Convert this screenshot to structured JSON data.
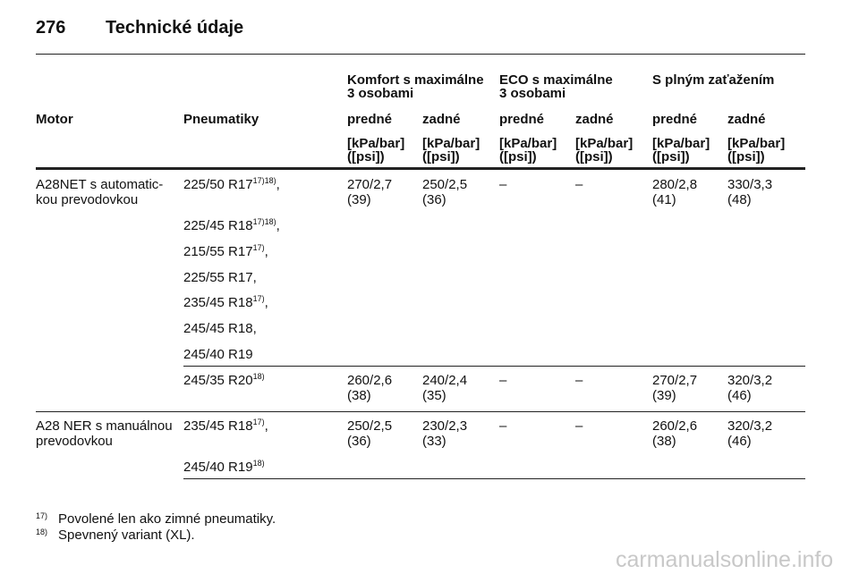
{
  "header": {
    "page": "276",
    "title": "Technické údaje"
  },
  "table": {
    "group_headers": [
      [
        "Komfort s maximálne",
        "3 osobami"
      ],
      [
        "ECO s maximálne",
        "3 osobami"
      ],
      [
        "S plným zaťažením"
      ]
    ],
    "col_headers": [
      "Motor",
      "Pneumatiky",
      "predné",
      "zadné",
      "predné",
      "zadné",
      "predné",
      "zadné"
    ],
    "units": [
      [
        "[kPa/bar]",
        "([psi])"
      ],
      [
        "[kPa/bar]",
        "([psi])"
      ],
      [
        "[kPa/bar]",
        "([psi])"
      ],
      [
        "[kPa/bar]",
        "([psi])"
      ],
      [
        "[kPa/bar]",
        "([psi])"
      ],
      [
        "[kPa/bar]",
        "([psi])"
      ]
    ],
    "groups": [
      {
        "motor": [
          "A28NET s automatic-",
          "kou prevodovkou"
        ],
        "rows": [
          {
            "tires": [
              {
                "text": "225/50 R17",
                "sup": "17)18)",
                "suffix": ","
              },
              {
                "text": "225/45 R18",
                "sup": "17)18)",
                "suffix": ","
              },
              {
                "text": "215/55 R17",
                "sup": "17)",
                "suffix": ","
              },
              {
                "text": "225/55 R17,"
              },
              {
                "text": "235/45 R18",
                "sup": "17)",
                "suffix": ","
              },
              {
                "text": "245/45 R18,"
              },
              {
                "text": "245/40 R19"
              }
            ],
            "cells": [
              [
                "270/2,7",
                "(39)"
              ],
              [
                "250/2,5",
                "(36)"
              ],
              [
                "–"
              ],
              [
                "–"
              ],
              [
                "280/2,8",
                "(41)"
              ],
              [
                "330/3,3",
                "(48)"
              ]
            ]
          },
          {
            "tires": [
              {
                "text": "245/35 R20",
                "sup": "18)"
              }
            ],
            "cells": [
              [
                "260/2,6",
                "(38)"
              ],
              [
                "240/2,4",
                "(35)"
              ],
              [
                "–"
              ],
              [
                "–"
              ],
              [
                "270/2,7",
                "(39)"
              ],
              [
                "320/3,2",
                "(46)"
              ]
            ]
          }
        ]
      },
      {
        "motor": [
          "A28 NER s manuálnou",
          "prevodovkou"
        ],
        "rows": [
          {
            "tires": [
              {
                "text": "235/45 R18",
                "sup": "17)",
                "suffix": ","
              },
              {
                "text": "245/40 R19",
                "sup": "18)"
              }
            ],
            "cells": [
              [
                "250/2,5",
                "(36)"
              ],
              [
                "230/2,3",
                "(33)"
              ],
              [
                "–"
              ],
              [
                "–"
              ],
              [
                "260/2,6",
                "(38)"
              ],
              [
                "320/3,2",
                "(46)"
              ]
            ]
          }
        ]
      }
    ]
  },
  "footnotes": [
    {
      "mark": "17)",
      "text": "Povolené len ako zimné pneumatiky."
    },
    {
      "mark": "18)",
      "text": "Spevnený variant (XL)."
    }
  ],
  "watermark": "carmanualsonline.info"
}
